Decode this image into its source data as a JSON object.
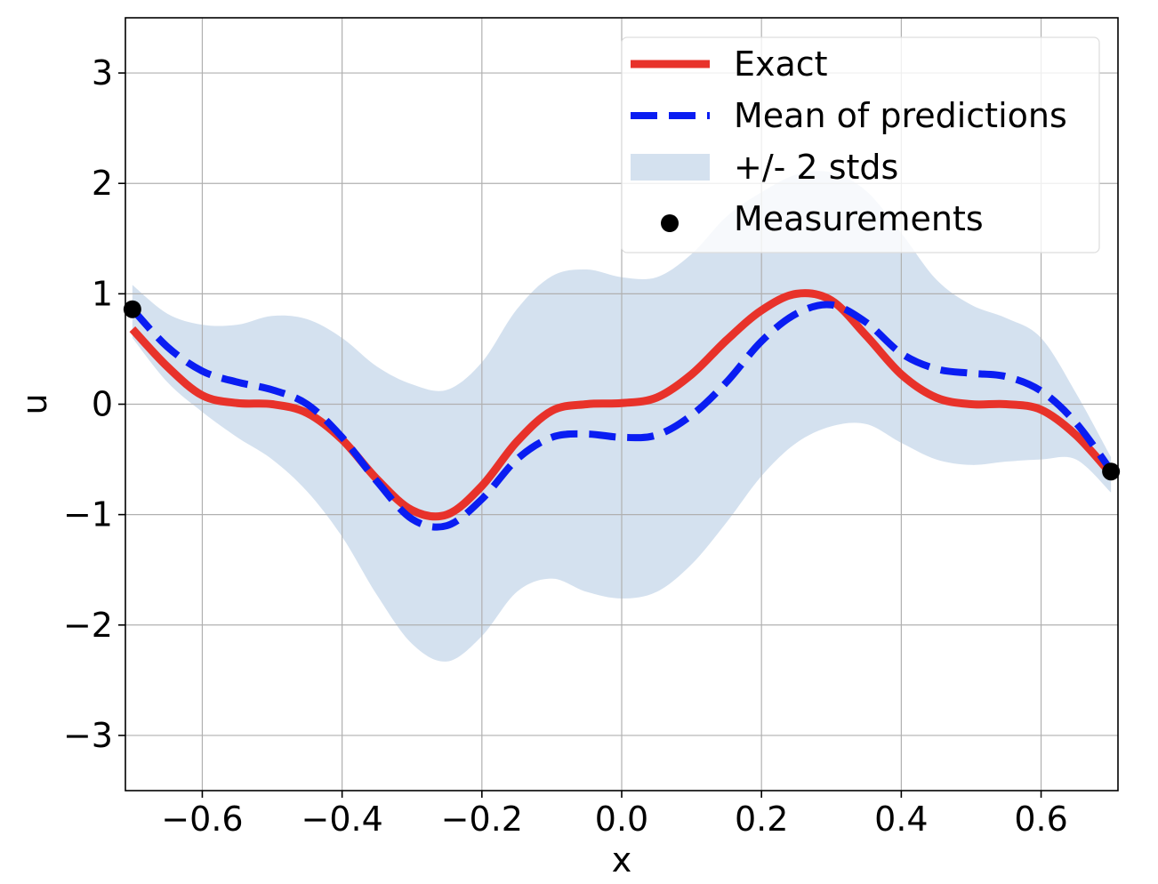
{
  "chart_data": {
    "type": "line",
    "title": "",
    "xlabel": "x",
    "ylabel": "u",
    "xlim": [
      -0.71,
      0.71
    ],
    "ylim": [
      -3.5,
      3.5
    ],
    "xticks": [
      -0.6,
      -0.4,
      -0.2,
      0.0,
      0.2,
      0.4,
      0.6
    ],
    "xtick_labels": [
      "−0.6",
      "−0.4",
      "−0.2",
      "0.0",
      "0.2",
      "0.4",
      "0.6"
    ],
    "yticks": [
      -3,
      -2,
      -1,
      0,
      1,
      2,
      3
    ],
    "ytick_labels": [
      "−3",
      "−2",
      "−1",
      "0",
      "1",
      "2",
      "3"
    ],
    "grid": true,
    "legend_position": "top-right",
    "x": [
      -0.7,
      -0.65,
      -0.6,
      -0.55,
      -0.5,
      -0.45,
      -0.4,
      -0.35,
      -0.3,
      -0.25,
      -0.2,
      -0.15,
      -0.1,
      -0.05,
      0.0,
      0.05,
      0.1,
      0.15,
      0.2,
      0.25,
      0.3,
      0.35,
      0.4,
      0.45,
      0.5,
      0.55,
      0.6,
      0.65,
      0.7
    ],
    "series": [
      {
        "name": "Exact",
        "kind": "line",
        "color": "#e8322a",
        "values": [
          0.68,
          0.34,
          0.08,
          0.01,
          0.0,
          -0.08,
          -0.32,
          -0.68,
          -0.96,
          -1.0,
          -0.74,
          -0.34,
          -0.06,
          0.0,
          0.01,
          0.06,
          0.27,
          0.58,
          0.85,
          1.0,
          0.94,
          0.62,
          0.27,
          0.06,
          0.0,
          0.0,
          -0.05,
          -0.28,
          -0.63
        ]
      },
      {
        "name": "Mean of predictions",
        "kind": "dashed",
        "color": "#0a1df2",
        "values": [
          0.86,
          0.52,
          0.3,
          0.2,
          0.13,
          0.0,
          -0.3,
          -0.7,
          -1.04,
          -1.1,
          -0.86,
          -0.5,
          -0.3,
          -0.27,
          -0.3,
          -0.28,
          -0.1,
          0.2,
          0.57,
          0.82,
          0.9,
          0.74,
          0.46,
          0.32,
          0.28,
          0.25,
          0.12,
          -0.17,
          -0.6
        ]
      },
      {
        "name": "+/- 2 stds",
        "kind": "band",
        "color": "#b8cde4",
        "lower": [
          0.6,
          0.2,
          -0.07,
          -0.3,
          -0.5,
          -0.79,
          -1.2,
          -1.73,
          -2.17,
          -2.33,
          -2.1,
          -1.7,
          -1.58,
          -1.7,
          -1.76,
          -1.7,
          -1.45,
          -1.07,
          -0.65,
          -0.35,
          -0.2,
          -0.18,
          -0.35,
          -0.5,
          -0.55,
          -0.52,
          -0.5,
          -0.5,
          -0.8
        ],
        "upper": [
          1.08,
          0.82,
          0.72,
          0.72,
          0.8,
          0.77,
          0.6,
          0.34,
          0.18,
          0.13,
          0.38,
          0.86,
          1.16,
          1.22,
          1.15,
          1.15,
          1.36,
          1.7,
          1.92,
          2.08,
          2.1,
          1.93,
          1.55,
          1.13,
          0.9,
          0.78,
          0.6,
          0.1,
          -0.48
        ]
      },
      {
        "name": "Measurements",
        "kind": "scatter",
        "color": "#000000",
        "points": [
          [
            -0.7,
            0.86
          ],
          [
            0.7,
            -0.61
          ]
        ]
      }
    ]
  }
}
